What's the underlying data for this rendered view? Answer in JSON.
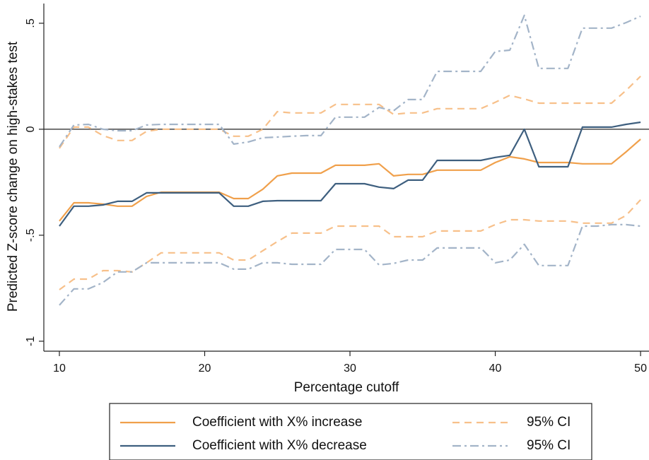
{
  "chart_data": {
    "type": "line",
    "x_label": "Percentage cutoff",
    "y_label": "Predicted Z-score change on high-stakes test",
    "x": [
      10,
      11,
      12,
      13,
      14,
      15,
      16,
      17,
      18,
      19,
      20,
      21,
      22,
      23,
      24,
      25,
      26,
      27,
      28,
      29,
      30,
      31,
      32,
      33,
      34,
      35,
      36,
      37,
      38,
      39,
      40,
      41,
      42,
      43,
      44,
      45,
      46,
      47,
      48,
      49,
      50
    ],
    "xlim": [
      8.93,
      50.58
    ],
    "xticks": [
      10,
      20,
      30,
      40,
      50
    ],
    "ylim": [
      -1.047,
      0.593
    ],
    "yticks": [
      {
        "value": 0.5,
        "label": ".5"
      },
      0,
      {
        "value": -0.5,
        "label": "-.5"
      },
      -1
    ],
    "reference_line": 0,
    "series": [
      {
        "name": "Coefficient with X% increase",
        "color": "#f0a04b",
        "dash": "solid",
        "values": [
          -0.433,
          -0.347,
          -0.347,
          -0.353,
          -0.363,
          -0.363,
          -0.317,
          -0.297,
          -0.297,
          -0.297,
          -0.297,
          -0.297,
          -0.327,
          -0.327,
          -0.283,
          -0.22,
          -0.207,
          -0.207,
          -0.207,
          -0.17,
          -0.17,
          -0.17,
          -0.163,
          -0.22,
          -0.213,
          -0.213,
          -0.193,
          -0.193,
          -0.193,
          -0.193,
          -0.157,
          -0.13,
          -0.14,
          -0.157,
          -0.157,
          -0.157,
          -0.163,
          -0.163,
          -0.163,
          -0.107,
          -0.047
        ]
      },
      {
        "name": "95% CI",
        "color": "#f7c08a",
        "dash": "dash",
        "upper": [
          -0.09,
          0.01,
          0.01,
          -0.03,
          -0.053,
          -0.053,
          -0.01,
          0,
          0,
          0,
          0,
          0,
          -0.033,
          -0.033,
          0,
          0.083,
          0.077,
          0.077,
          0.077,
          0.117,
          0.117,
          0.117,
          0.117,
          0.07,
          0.077,
          0.077,
          0.097,
          0.097,
          0.097,
          0.097,
          0.127,
          0.16,
          0.143,
          0.123,
          0.123,
          0.123,
          0.123,
          0.123,
          0.123,
          0.183,
          0.25
        ],
        "lower": [
          -0.757,
          -0.707,
          -0.707,
          -0.667,
          -0.667,
          -0.673,
          -0.63,
          -0.583,
          -0.583,
          -0.583,
          -0.583,
          -0.583,
          -0.617,
          -0.617,
          -0.573,
          -0.53,
          -0.49,
          -0.49,
          -0.49,
          -0.457,
          -0.457,
          -0.457,
          -0.457,
          -0.507,
          -0.507,
          -0.507,
          -0.48,
          -0.48,
          -0.48,
          -0.48,
          -0.45,
          -0.427,
          -0.427,
          -0.433,
          -0.433,
          -0.433,
          -0.443,
          -0.443,
          -0.443,
          -0.407,
          -0.333
        ]
      },
      {
        "name": "Coefficient with X% decrease",
        "color": "#3e5f7f",
        "dash": "solid",
        "values": [
          -0.457,
          -0.363,
          -0.363,
          -0.357,
          -0.34,
          -0.34,
          -0.3,
          -0.3,
          -0.3,
          -0.3,
          -0.3,
          -0.3,
          -0.363,
          -0.363,
          -0.34,
          -0.337,
          -0.337,
          -0.337,
          -0.337,
          -0.257,
          -0.257,
          -0.257,
          -0.273,
          -0.28,
          -0.24,
          -0.24,
          -0.147,
          -0.147,
          -0.147,
          -0.147,
          -0.133,
          -0.123,
          0,
          -0.177,
          -0.177,
          -0.177,
          0.01,
          0.01,
          0.01,
          0.023,
          0.033
        ]
      },
      {
        "name": "95% CI",
        "color": "#a3b4c8",
        "dash": "dashdot",
        "upper": [
          -0.083,
          0.02,
          0.023,
          0,
          -0.007,
          -0.007,
          0.02,
          0.023,
          0.023,
          0.023,
          0.023,
          0.023,
          -0.07,
          -0.06,
          -0.04,
          -0.037,
          -0.033,
          -0.03,
          -0.03,
          0.057,
          0.057,
          0.057,
          0.103,
          0.087,
          0.14,
          0.14,
          0.273,
          0.273,
          0.273,
          0.273,
          0.367,
          0.373,
          0.537,
          0.287,
          0.287,
          0.287,
          0.477,
          0.477,
          0.477,
          0.503,
          0.533
        ],
        "lower": [
          -0.83,
          -0.753,
          -0.753,
          -0.723,
          -0.673,
          -0.673,
          -0.63,
          -0.63,
          -0.63,
          -0.63,
          -0.63,
          -0.63,
          -0.66,
          -0.66,
          -0.63,
          -0.63,
          -0.637,
          -0.637,
          -0.637,
          -0.567,
          -0.567,
          -0.567,
          -0.64,
          -0.633,
          -0.617,
          -0.617,
          -0.56,
          -0.56,
          -0.56,
          -0.56,
          -0.63,
          -0.617,
          -0.543,
          -0.643,
          -0.643,
          -0.643,
          -0.457,
          -0.457,
          -0.45,
          -0.45,
          -0.457
        ]
      }
    ]
  }
}
